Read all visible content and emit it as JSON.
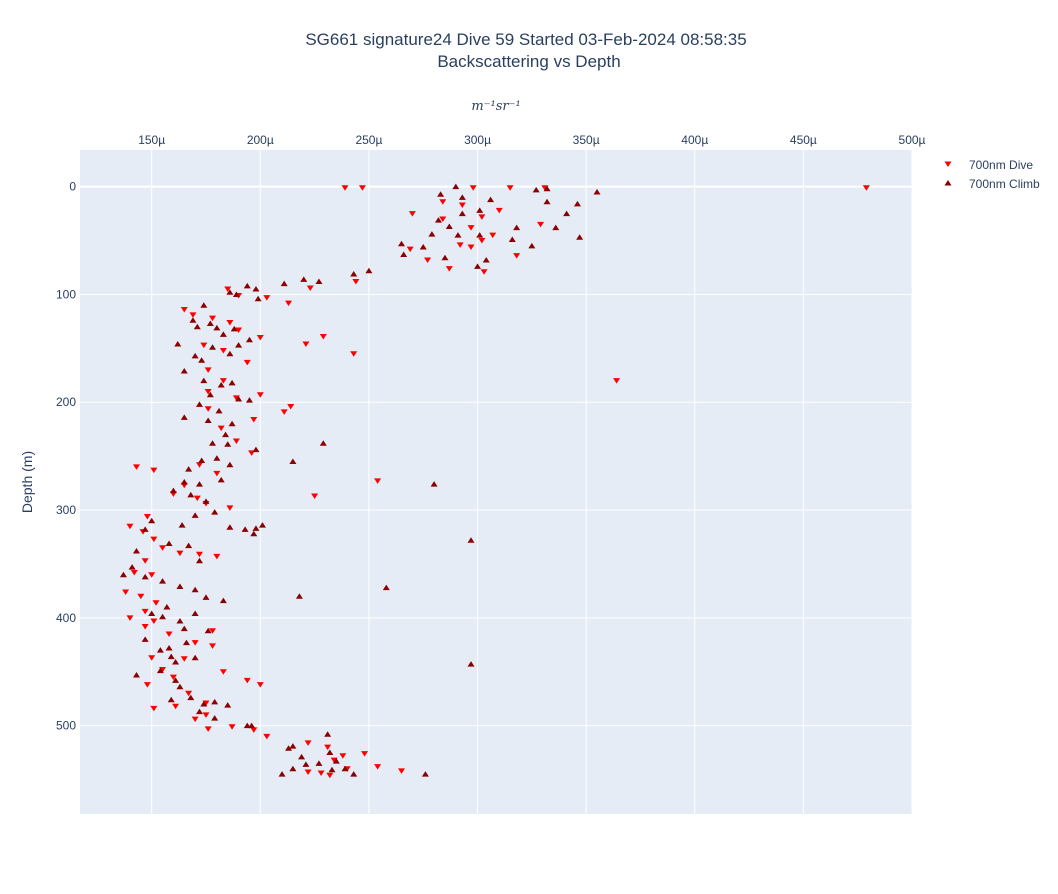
{
  "chart_data": {
    "type": "scatter",
    "title": "SG661 signature24 Dive 59 Started 03-Feb-2024 08:58:35",
    "subtitle": "Backscattering vs Depth",
    "xlabel_unit": "m⁻¹sr⁻¹",
    "ylabel": "Depth (m)",
    "xlim": [
      0.000117,
      0.0005
    ],
    "ylim": [
      582,
      -34
    ],
    "x_ticks": [
      {
        "value": 0.00015,
        "label": "150µ"
      },
      {
        "value": 0.0002,
        "label": "200µ"
      },
      {
        "value": 0.00025,
        "label": "250µ"
      },
      {
        "value": 0.0003,
        "label": "300µ"
      },
      {
        "value": 0.00035,
        "label": "350µ"
      },
      {
        "value": 0.0004,
        "label": "400µ"
      },
      {
        "value": 0.00045,
        "label": "450µ"
      },
      {
        "value": 0.0005,
        "label": "500µ"
      }
    ],
    "y_ticks": [
      {
        "value": 0,
        "label": "0"
      },
      {
        "value": 100,
        "label": "100"
      },
      {
        "value": 200,
        "label": "200"
      },
      {
        "value": 300,
        "label": "300"
      },
      {
        "value": 400,
        "label": "400"
      },
      {
        "value": 500,
        "label": "500"
      }
    ],
    "series": [
      {
        "name": "700nm Dive",
        "color": "#ff0000",
        "marker": "triangle-down",
        "points": [
          [
            0.000239,
            1
          ],
          [
            0.000247,
            1
          ],
          [
            0.000298,
            1
          ],
          [
            0.000315,
            1
          ],
          [
            0.000331,
            1
          ],
          [
            0.000479,
            1
          ],
          [
            0.000284,
            14
          ],
          [
            0.000293,
            17
          ],
          [
            0.00031,
            22
          ],
          [
            0.00027,
            25
          ],
          [
            0.000284,
            30
          ],
          [
            0.000302,
            28
          ],
          [
            0.000329,
            35
          ],
          [
            0.000297,
            38
          ],
          [
            0.000307,
            45
          ],
          [
            0.000302,
            50
          ],
          [
            0.000292,
            54
          ],
          [
            0.000297,
            56
          ],
          [
            0.000269,
            58
          ],
          [
            0.000277,
            68
          ],
          [
            0.000287,
            76
          ],
          [
            0.000303,
            79
          ],
          [
            0.000318,
            64
          ],
          [
            0.000223,
            94
          ],
          [
            0.000203,
            103
          ],
          [
            0.000213,
            108
          ],
          [
            0.000244,
            88
          ],
          [
            0.000185,
            95
          ],
          [
            0.00019,
            101
          ],
          [
            0.000165,
            114
          ],
          [
            0.000169,
            119
          ],
          [
            0.000178,
            122
          ],
          [
            0.000186,
            126
          ],
          [
            0.00019,
            133
          ],
          [
            0.0002,
            140
          ],
          [
            0.000174,
            147
          ],
          [
            0.000183,
            152
          ],
          [
            0.000194,
            163
          ],
          [
            0.000221,
            146
          ],
          [
            0.000229,
            139
          ],
          [
            0.000243,
            155
          ],
          [
            0.000176,
            170
          ],
          [
            0.000183,
            180
          ],
          [
            0.000176,
            190
          ],
          [
            0.000189,
            196
          ],
          [
            0.0002,
            193
          ],
          [
            0.000211,
            209
          ],
          [
            0.000176,
            206
          ],
          [
            0.000197,
            216
          ],
          [
            0.000182,
            224
          ],
          [
            0.000189,
            236
          ],
          [
            0.000196,
            247
          ],
          [
            0.000214,
            204
          ],
          [
            0.000364,
            180
          ],
          [
            0.000172,
            258
          ],
          [
            0.00018,
            266
          ],
          [
            0.000165,
            277
          ],
          [
            0.00016,
            285
          ],
          [
            0.000171,
            289
          ],
          [
            0.000175,
            294
          ],
          [
            0.000186,
            298
          ],
          [
            0.000225,
            287
          ],
          [
            0.000254,
            273
          ],
          [
            0.000143,
            260
          ],
          [
            0.000151,
            263
          ],
          [
            0.000148,
            306
          ],
          [
            0.00014,
            315
          ],
          [
            0.000146,
            320
          ],
          [
            0.000151,
            327
          ],
          [
            0.000155,
            335
          ],
          [
            0.000163,
            340
          ],
          [
            0.000172,
            341
          ],
          [
            0.00018,
            343
          ],
          [
            0.000147,
            347
          ],
          [
            0.000142,
            358
          ],
          [
            0.00015,
            360
          ],
          [
            0.000138,
            376
          ],
          [
            0.000145,
            380
          ],
          [
            0.000152,
            386
          ],
          [
            0.000147,
            394
          ],
          [
            0.00014,
            400
          ],
          [
            0.000151,
            403
          ],
          [
            0.000147,
            408
          ],
          [
            0.000158,
            415
          ],
          [
            0.00017,
            423
          ],
          [
            0.000178,
            412
          ],
          [
            0.000178,
            426
          ],
          [
            0.000165,
            438
          ],
          [
            0.00015,
            437
          ],
          [
            0.000155,
            448
          ],
          [
            0.00016,
            455
          ],
          [
            0.000148,
            462
          ],
          [
            0.000167,
            470
          ],
          [
            0.000175,
            479
          ],
          [
            0.000161,
            482
          ],
          [
            0.000151,
            484
          ],
          [
            0.000183,
            450
          ],
          [
            0.000194,
            458
          ],
          [
            0.0002,
            462
          ],
          [
            0.000175,
            490
          ],
          [
            0.00017,
            494
          ],
          [
            0.000176,
            503
          ],
          [
            0.000187,
            501
          ],
          [
            0.000197,
            504
          ],
          [
            0.000203,
            510
          ],
          [
            0.000222,
            516
          ],
          [
            0.000231,
            520
          ],
          [
            0.000238,
            528
          ],
          [
            0.000234,
            532
          ],
          [
            0.000248,
            526
          ],
          [
            0.000254,
            538
          ],
          [
            0.000265,
            542
          ],
          [
            0.00024,
            540
          ],
          [
            0.000228,
            544
          ],
          [
            0.000232,
            546
          ],
          [
            0.000222,
            543
          ]
        ]
      },
      {
        "name": "700nm Climb",
        "color": "#8b0000",
        "marker": "triangle-up",
        "points": [
          [
            0.00029,
            0
          ],
          [
            0.000327,
            3
          ],
          [
            0.000332,
            2
          ],
          [
            0.000355,
            5
          ],
          [
            0.000283,
            7
          ],
          [
            0.000293,
            10
          ],
          [
            0.000306,
            12
          ],
          [
            0.000332,
            14
          ],
          [
            0.000346,
            16
          ],
          [
            0.000301,
            22
          ],
          [
            0.000293,
            25
          ],
          [
            0.000341,
            25
          ],
          [
            0.000282,
            31
          ],
          [
            0.000287,
            37
          ],
          [
            0.000279,
            44
          ],
          [
            0.000318,
            38
          ],
          [
            0.000336,
            38
          ],
          [
            0.000347,
            47
          ],
          [
            0.000291,
            45
          ],
          [
            0.000301,
            45
          ],
          [
            0.000316,
            49
          ],
          [
            0.000325,
            55
          ],
          [
            0.000265,
            53
          ],
          [
            0.000275,
            56
          ],
          [
            0.000266,
            63
          ],
          [
            0.000285,
            66
          ],
          [
            0.000304,
            68
          ],
          [
            0.0003,
            74
          ],
          [
            0.000243,
            81
          ],
          [
            0.00025,
            78
          ],
          [
            0.00022,
            86
          ],
          [
            0.000227,
            88
          ],
          [
            0.000211,
            90
          ],
          [
            0.000198,
            95
          ],
          [
            0.000194,
            92
          ],
          [
            0.000186,
            98
          ],
          [
            0.000189,
            100
          ],
          [
            0.000199,
            104
          ],
          [
            0.000174,
            110
          ],
          [
            0.000169,
            124
          ],
          [
            0.000177,
            127
          ],
          [
            0.000171,
            130
          ],
          [
            0.00018,
            131
          ],
          [
            0.000188,
            132
          ],
          [
            0.000183,
            137
          ],
          [
            0.000195,
            142
          ],
          [
            0.00019,
            147
          ],
          [
            0.000186,
            155
          ],
          [
            0.00017,
            157
          ],
          [
            0.000178,
            149
          ],
          [
            0.000162,
            146
          ],
          [
            0.000173,
            161
          ],
          [
            0.000165,
            171
          ],
          [
            0.000174,
            180
          ],
          [
            0.000182,
            184
          ],
          [
            0.000187,
            182
          ],
          [
            0.000177,
            193
          ],
          [
            0.00019,
            197
          ],
          [
            0.000195,
            198
          ],
          [
            0.000172,
            202
          ],
          [
            0.000181,
            208
          ],
          [
            0.000165,
            214
          ],
          [
            0.000176,
            217
          ],
          [
            0.000187,
            220
          ],
          [
            0.000184,
            230
          ],
          [
            0.000178,
            238
          ],
          [
            0.000185,
            239
          ],
          [
            0.000198,
            244
          ],
          [
            0.000173,
            254
          ],
          [
            0.00018,
            252
          ],
          [
            0.000186,
            258
          ],
          [
            0.000167,
            262
          ],
          [
            0.000215,
            255
          ],
          [
            0.000229,
            238
          ],
          [
            0.000165,
            274
          ],
          [
            0.000172,
            276
          ],
          [
            0.000182,
            272
          ],
          [
            0.00016,
            282
          ],
          [
            0.000168,
            286
          ],
          [
            0.000175,
            292
          ],
          [
            0.000179,
            302
          ],
          [
            0.00017,
            305
          ],
          [
            0.000164,
            314
          ],
          [
            0.000186,
            316
          ],
          [
            0.000193,
            318
          ],
          [
            0.000197,
            322
          ],
          [
            0.000198,
            317
          ],
          [
            0.000201,
            314
          ],
          [
            0.00028,
            276
          ],
          [
            0.000297,
            328
          ],
          [
            0.00015,
            310
          ],
          [
            0.000147,
            318
          ],
          [
            0.000143,
            338
          ],
          [
            0.000158,
            331
          ],
          [
            0.000167,
            333
          ],
          [
            0.000172,
            347
          ],
          [
            0.000141,
            353
          ],
          [
            0.000137,
            360
          ],
          [
            0.000147,
            362
          ],
          [
            0.000155,
            366
          ],
          [
            0.000163,
            371
          ],
          [
            0.00017,
            374
          ],
          [
            0.000175,
            381
          ],
          [
            0.000183,
            384
          ],
          [
            0.000157,
            390
          ],
          [
            0.00017,
            396
          ],
          [
            0.00015,
            396
          ],
          [
            0.000155,
            399
          ],
          [
            0.000163,
            403
          ],
          [
            0.000165,
            410
          ],
          [
            0.000176,
            412
          ],
          [
            0.000158,
            428
          ],
          [
            0.000166,
            423
          ],
          [
            0.000154,
            430
          ],
          [
            0.000147,
            420
          ],
          [
            0.000159,
            436
          ],
          [
            0.000161,
            441
          ],
          [
            0.00017,
            437
          ],
          [
            0.000154,
            449
          ],
          [
            0.000143,
            453
          ],
          [
            0.000161,
            458
          ],
          [
            0.000163,
            464
          ],
          [
            0.000168,
            474
          ],
          [
            0.000159,
            476
          ],
          [
            0.000174,
            480
          ],
          [
            0.000179,
            478
          ],
          [
            0.000185,
            481
          ],
          [
            0.000172,
            487
          ],
          [
            0.000179,
            493
          ],
          [
            0.000194,
            500
          ],
          [
            0.000196,
            500
          ],
          [
            0.000218,
            380
          ],
          [
            0.000258,
            372
          ],
          [
            0.000297,
            443
          ],
          [
            0.000215,
            519
          ],
          [
            0.000213,
            521
          ],
          [
            0.000219,
            529
          ],
          [
            0.000231,
            508
          ],
          [
            0.000232,
            525
          ],
          [
            0.000227,
            535
          ],
          [
            0.000235,
            533
          ],
          [
            0.00021,
            545
          ],
          [
            0.000215,
            540
          ],
          [
            0.000221,
            536
          ],
          [
            0.000233,
            541
          ],
          [
            0.000243,
            545
          ],
          [
            0.000276,
            545
          ],
          [
            0.000239,
            540
          ]
        ]
      }
    ]
  }
}
